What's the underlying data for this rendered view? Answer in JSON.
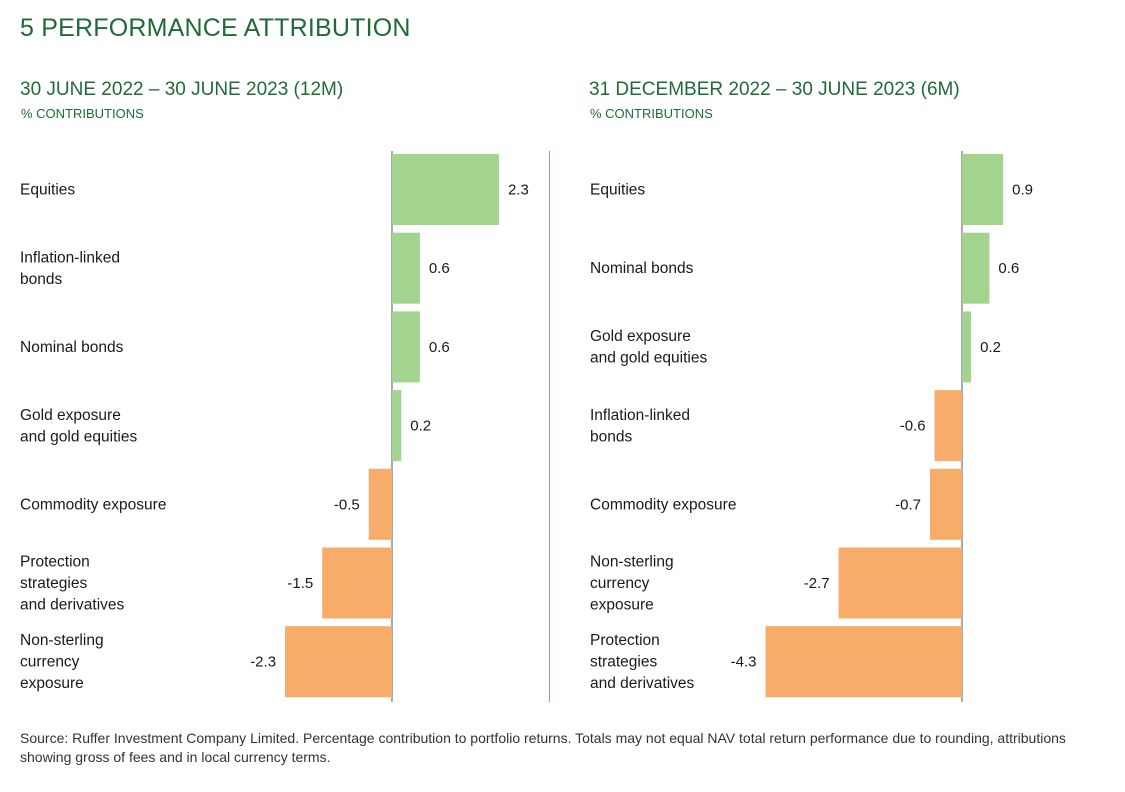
{
  "heading": "5  PERFORMANCE ATTRIBUTION",
  "footnote": "Source: Ruffer Investment Company Limited. Percentage contribution to portfolio returns. Totals may not equal NAV total return performance due to rounding, attributions showing gross of fees and in local currency terms.",
  "colors": {
    "positive": "#a3d48f",
    "negative": "#f7ac6a",
    "axis": "#555555",
    "title": "#1f6b35"
  },
  "chart_data": [
    {
      "type": "bar",
      "orientation": "horizontal",
      "title": "30 JUNE 2022 – 30 JUNE 2023 (12M)",
      "subtitle": "% CONTRIBUTIONS",
      "categories": [
        [
          "Equities"
        ],
        [
          "Inflation-linked",
          "bonds"
        ],
        [
          "Nominal bonds"
        ],
        [
          "Gold exposure",
          "and gold equities"
        ],
        [
          "Commodity exposure"
        ],
        [
          "Protection",
          "strategies",
          "and derivatives"
        ],
        [
          "Non-sterling",
          "currency",
          "exposure"
        ]
      ],
      "values": [
        2.3,
        0.6,
        0.6,
        0.2,
        -0.5,
        -1.5,
        -2.3
      ],
      "value_labels": [
        "2.3",
        "0.6",
        "0.6",
        "0.2",
        "-0.5",
        "-1.5",
        "-2.3"
      ]
    },
    {
      "type": "bar",
      "orientation": "horizontal",
      "title": "31 DECEMBER 2022 – 30 JUNE 2023 (6M)",
      "subtitle": "% CONTRIBUTIONS",
      "categories": [
        [
          "Equities"
        ],
        [
          "Nominal bonds"
        ],
        [
          "Gold exposure",
          "and gold equities"
        ],
        [
          "Inflation-linked",
          "bonds"
        ],
        [
          "Commodity exposure"
        ],
        [
          "Non-sterling",
          "currency",
          "exposure"
        ],
        [
          "Protection",
          "strategies",
          "and derivatives"
        ]
      ],
      "values": [
        0.9,
        0.6,
        0.2,
        -0.6,
        -0.7,
        -2.7,
        -4.3
      ],
      "value_labels": [
        "0.9",
        "0.6",
        "0.2",
        "-0.6",
        "-0.7",
        "-2.7",
        "-4.3"
      ]
    }
  ]
}
